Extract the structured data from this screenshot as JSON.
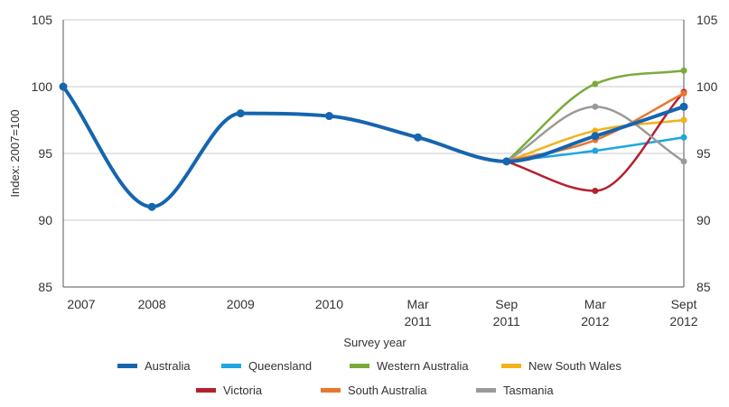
{
  "chart_data": {
    "type": "line",
    "xlabel": "Survey year",
    "ylabel": "Index: 2007=100",
    "ylim": [
      85,
      105
    ],
    "yticks": [
      85,
      90,
      95,
      100,
      105
    ],
    "right_axis": true,
    "grid": true,
    "legend_position": "bottom",
    "categories": [
      {
        "line1": "2007",
        "line2": ""
      },
      {
        "line1": "2008",
        "line2": ""
      },
      {
        "line1": "2009",
        "line2": ""
      },
      {
        "line1": "2010",
        "line2": ""
      },
      {
        "line1": "Mar",
        "line2": "2011"
      },
      {
        "line1": "Sep",
        "line2": "2011"
      },
      {
        "line1": "Mar",
        "line2": "2012"
      },
      {
        "line1": "Sept",
        "line2": "2012"
      }
    ],
    "series": [
      {
        "name": "Australia",
        "color": "#1565b0",
        "values": [
          100,
          91,
          98,
          97.8,
          96.2,
          94.4,
          96.3,
          98.5
        ]
      },
      {
        "name": "Queensland",
        "color": "#1ea6e0",
        "values": [
          null,
          null,
          null,
          null,
          null,
          94.4,
          95.2,
          96.2
        ]
      },
      {
        "name": "Western Australia",
        "color": "#7aab3a",
        "values": [
          null,
          null,
          null,
          null,
          null,
          94.4,
          100.2,
          101.2
        ]
      },
      {
        "name": "New South Wales",
        "color": "#f2b21c",
        "values": [
          null,
          null,
          null,
          null,
          null,
          94.4,
          96.7,
          97.5
        ]
      },
      {
        "name": "Victoria",
        "color": "#b5202e",
        "values": [
          null,
          null,
          null,
          null,
          null,
          94.4,
          92.2,
          99.6
        ]
      },
      {
        "name": "South Australia",
        "color": "#e8772e",
        "values": [
          null,
          null,
          null,
          null,
          null,
          94.4,
          96.0,
          99.5
        ]
      },
      {
        "name": "Tasmania",
        "color": "#9a9a9a",
        "values": [
          null,
          null,
          null,
          null,
          null,
          94.4,
          98.5,
          94.4
        ]
      }
    ]
  }
}
